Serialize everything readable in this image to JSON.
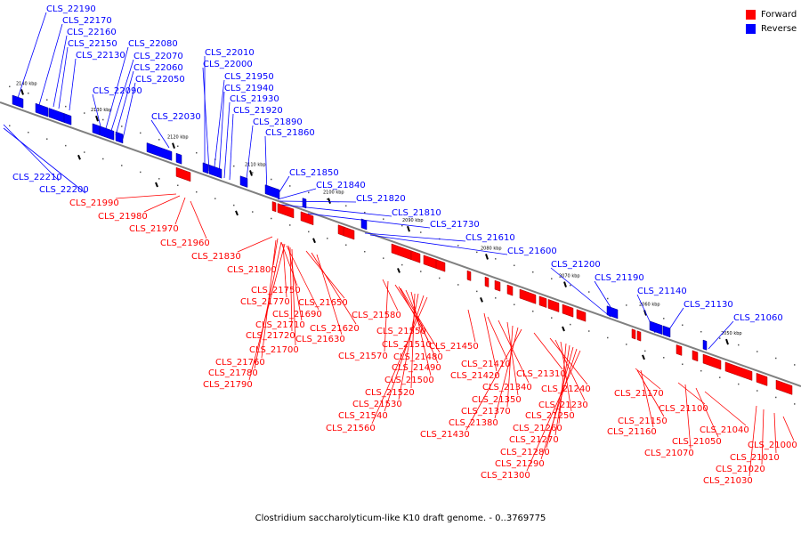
{
  "caption": "Clostridium saccharolyticum-like K10 draft genome. - 0..3769775",
  "legend": [
    {
      "label": "Forward",
      "color": "#ff0000"
    },
    {
      "label": "Reverse",
      "color": "#0000ff"
    }
  ],
  "colors": {
    "forward": "#ff0000",
    "reverse": "#0000ff",
    "backbone": "#808080"
  },
  "tick_labels": [
    "2140 kbp",
    "2130 kbp",
    "2120 kbp",
    "2110 kbp",
    "2100 kbp",
    "2090 kbp",
    "2080 kbp",
    "2070 kbp",
    "2060 kbp",
    "2050 kbp"
  ],
  "reverse_labels": [
    "CLS_22190",
    "CLS_22170",
    "CLS_22160",
    "CLS_22150",
    "CLS_22130",
    "CLS_22080",
    "CLS_22070",
    "CLS_22060",
    "CLS_22050",
    "CLS_22090",
    "CLS_22030",
    "CLS_22010",
    "CLS_22000",
    "CLS_21950",
    "CLS_21940",
    "CLS_21930",
    "CLS_21920",
    "CLS_21890",
    "CLS_21860",
    "CLS_21850",
    "CLS_21840",
    "CLS_21820",
    "CLS_21810",
    "CLS_21730",
    "CLS_21610",
    "CLS_21600",
    "CLS_21200",
    "CLS_21190",
    "CLS_21140",
    "CLS_21130",
    "CLS_21060",
    "CLS_22210",
    "CLS_22200"
  ],
  "forward_labels": [
    "CLS_21990",
    "CLS_21980",
    "CLS_21970",
    "CLS_21960",
    "CLS_21830",
    "CLS_21800",
    "CLS_21750",
    "CLS_21770",
    "CLS_21690",
    "CLS_21710",
    "CLS_21720",
    "CLS_21700",
    "CLS_21760",
    "CLS_21780",
    "CLS_21790",
    "CLS_21650",
    "CLS_21620",
    "CLS_21630",
    "CLS_21580",
    "CLS_21550",
    "CLS_21510",
    "CLS_21480",
    "CLS_21570",
    "CLS_21490",
    "CLS_21500",
    "CLS_21520",
    "CLS_21530",
    "CLS_21540",
    "CLS_21560",
    "CLS_21450",
    "CLS_21410",
    "CLS_21420",
    "CLS_21340",
    "CLS_21350",
    "CLS_21370",
    "CLS_21380",
    "CLS_21430",
    "CLS_21310",
    "CLS_21240",
    "CLS_21230",
    "CLS_21250",
    "CLS_21260",
    "CLS_21270",
    "CLS_21280",
    "CLS_21290",
    "CLS_21300",
    "CLS_21170",
    "CLS_21150",
    "CLS_21160",
    "CLS_21100",
    "CLS_21040",
    "CLS_21050",
    "CLS_21070",
    "CLS_21000",
    "CLS_21010",
    "CLS_21020",
    "CLS_21030"
  ]
}
